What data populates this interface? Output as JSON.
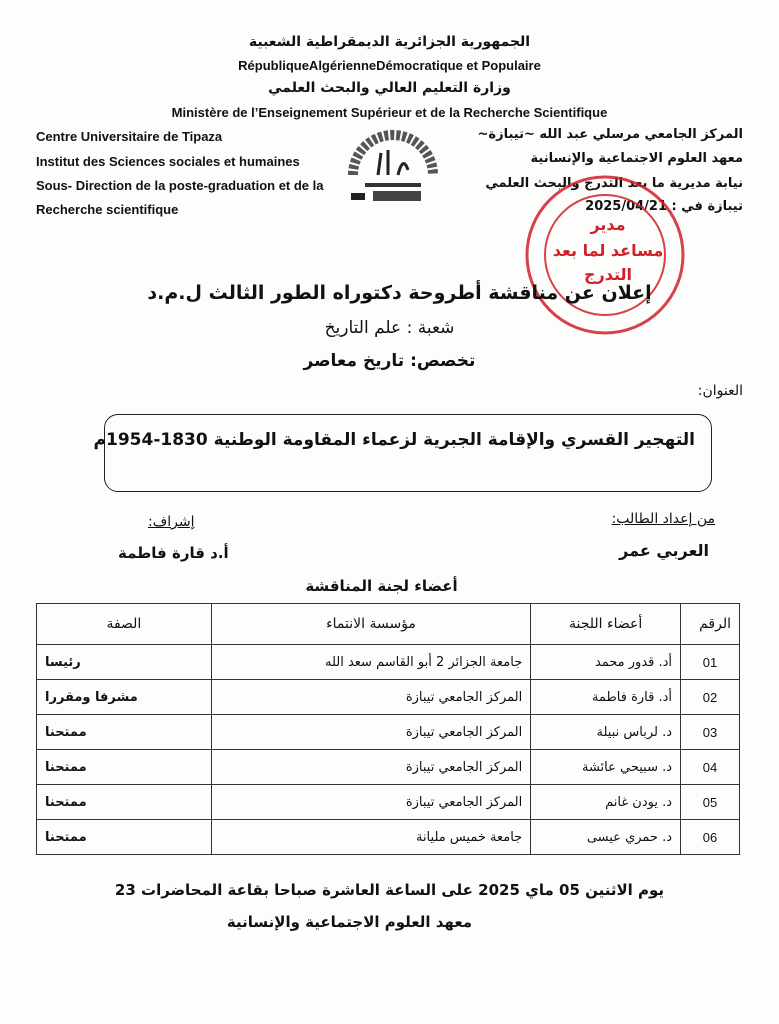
{
  "header": {
    "republic_ar": "الجمهورية الجزائرية الديمقراطية الشعبية",
    "republic_fr": "RépubliqueAlgérienneDémocratique et Populaire",
    "ministry_ar": "وزارة التعليم العالي والبحث العلمي",
    "ministry_fr": "Ministère de l’Enseignement Supérieur et de la Recherche Scientifique"
  },
  "left_block": [
    "Centre Universitaire de Tipaza",
    "Institut des Sciences sociales et  humaines",
    "Sous- Direction de la poste-graduation et de la",
    "Recherche scientifique"
  ],
  "right_block": [
    "المركز الجامعي مرسلي عبد الله ~تيبازة~",
    "معهد العلوم الاجتماعية والإنسانية",
    "نيابة مديرية ما بعد التدرج والبحث العلمي",
    "تيبازة في : 2025/04/21"
  ],
  "logo": {
    "text_ar": "المركز الجامعي مرسلي عبد الله",
    "text_fr": "TIPAZA"
  },
  "stamp": {
    "lines": [
      "مدير",
      "مساعد لما بعد",
      "التدرج"
    ],
    "color": "#d0202a"
  },
  "announcement": {
    "heading": "إعلان عن مناقشة أطروحة دكتوراه الطور الثالث ل.م.د",
    "branch": "شعبة : علم التاريخ",
    "specialty": "تخصص: تاريخ معاصر",
    "title_label": "العنوان:",
    "title": "التهجير القسري والإقامة الجبرية لزعماء المقاومة الوطنية 1830-1954م"
  },
  "student": {
    "label": "من إعداد الطالب:",
    "name": "العربي عمر"
  },
  "supervisor": {
    "label": "إشراف:",
    "name": "أ.د قارة فاطمة"
  },
  "committee": {
    "heading": "أعضاء لجنة المناقشة",
    "columns": [
      "الرقم",
      "أعضاء اللجنة",
      "مؤسسة الانتماء",
      "الصفة"
    ],
    "rows": [
      [
        "01",
        "أد. قدور محمد",
        "جامعة الجزائر 2 أبو القاسم سعد الله",
        "رئيسا"
      ],
      [
        "02",
        "أد. قارة فاطمة",
        "المركز الجامعي تيبازة",
        "مشرفا ومقررا"
      ],
      [
        "03",
        "د. لرباس نبيلة",
        "المركز الجامعي تيبازة",
        "ممتحنا"
      ],
      [
        "04",
        "د. سبيحي عائشة",
        "المركز الجامعي تيبازة",
        "ممتحنا"
      ],
      [
        "05",
        "د. يودن غانم",
        "المركز الجامعي تيبازة",
        "ممتحنا"
      ],
      [
        "06",
        "د. حمري عيسى",
        "جامعة خميس مليانة",
        "ممتحنا"
      ]
    ]
  },
  "footer": {
    "line1": "يوم الاثنين 05 ماي 2025 على الساعة العاشرة صباحا بقاعة المحاضرات 23",
    "line2": "معهد العلوم الاجتماعية والإنسانية"
  }
}
